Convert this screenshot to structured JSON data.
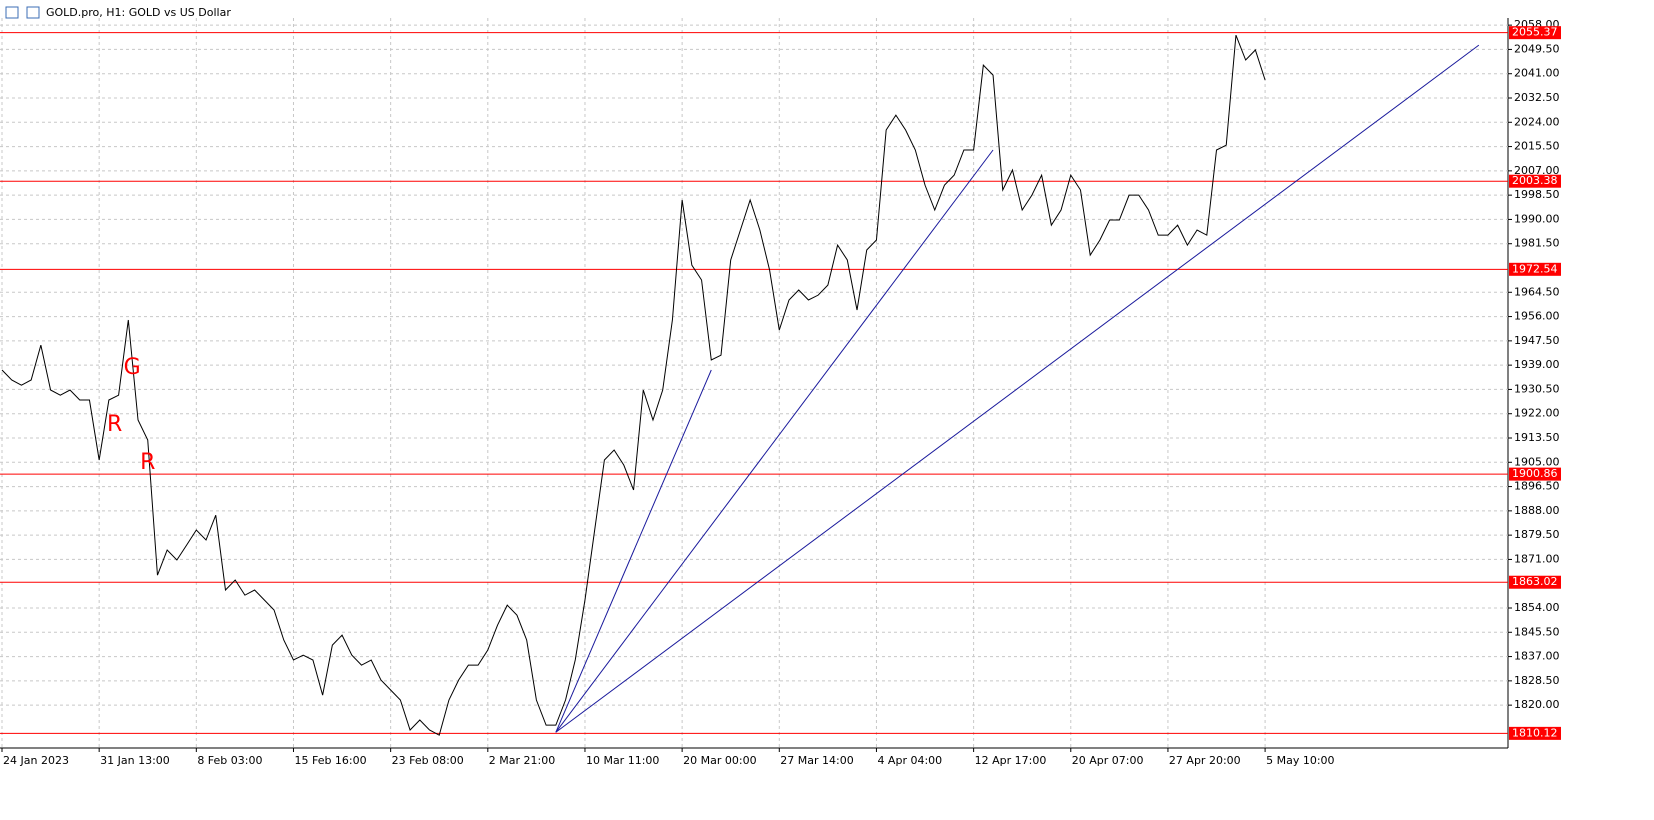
{
  "chart_data": {
    "type": "line",
    "title": "GOLD.pro, H1:  GOLD vs US Dollar",
    "categories": [
      "24 Jan 2023",
      null,
      null,
      null,
      null,
      null,
      null,
      null,
      null,
      null,
      "31 Jan 13:00",
      null,
      null,
      null,
      null,
      null,
      null,
      null,
      null,
      null,
      "8 Feb 03:00",
      null,
      null,
      null,
      null,
      null,
      null,
      null,
      null,
      null,
      "15 Feb 16:00",
      null,
      null,
      null,
      null,
      null,
      null,
      null,
      null,
      null,
      "23 Feb 08:00",
      null,
      null,
      null,
      null,
      null,
      null,
      null,
      null,
      null,
      "2 Mar 21:00",
      null,
      null,
      null,
      null,
      null,
      null,
      null,
      null,
      null,
      "10 Mar 11:00",
      null,
      null,
      null,
      null,
      null,
      null,
      null,
      null,
      null,
      "20 Mar 00:00",
      null,
      null,
      null,
      null,
      null,
      null,
      null,
      null,
      null,
      "27 Mar 14:00",
      null,
      null,
      null,
      null,
      null,
      null,
      null,
      null,
      null,
      "4 Apr 04:00",
      null,
      null,
      null,
      null,
      null,
      null,
      null,
      null,
      null,
      "12 Apr 17:00",
      null,
      null,
      null,
      null,
      null,
      null,
      null,
      null,
      null,
      "20 Apr 07:00",
      null,
      null,
      null,
      null,
      null,
      null,
      null,
      null,
      null,
      "27 Apr 20:00",
      null,
      null,
      null,
      null,
      null,
      null,
      null,
      null,
      null,
      "5 May 10:00",
      null,
      null,
      null,
      null,
      null,
      null,
      null,
      null,
      null,
      null,
      null,
      null,
      null,
      null,
      null,
      null,
      null,
      null,
      null,
      null,
      null,
      null,
      null,
      null
    ],
    "series": [
      {
        "color": "#000000",
        "values": [
          1937.3,
          1933.8,
          1932.0,
          1933.8,
          1946.0,
          1930.3,
          1928.5,
          1930.3,
          1926.8,
          1926.8,
          1905.8,
          1926.8,
          1928.5,
          1954.8,
          1919.8,
          1912.8,
          1865.5,
          1874.3,
          1870.8,
          1876.0,
          1881.3,
          1877.8,
          1886.5,
          1860.3,
          1863.8,
          1858.5,
          1860.3,
          1856.8,
          1853.3,
          1842.8,
          1835.8,
          1837.5,
          1835.8,
          1823.5,
          1841.0,
          1844.5,
          1837.5,
          1834.0,
          1835.8,
          1828.8,
          1825.3,
          1821.8,
          1811.3,
          1814.8,
          1811.3,
          1809.5,
          1821.8,
          1828.8,
          1834.0,
          1834.0,
          1839.3,
          1848.0,
          1855.0,
          1851.5,
          1842.8,
          1821.8,
          1813.0,
          1813.0,
          1821.8,
          1835.8,
          1856.8,
          1881.3,
          1905.8,
          1909.3,
          1904.0,
          1895.3,
          1930.3,
          1919.8,
          1930.3,
          1954.8,
          1996.8,
          1974.0,
          1968.8,
          1940.8,
          1942.5,
          1975.8,
          1986.3,
          1996.8,
          1986.3,
          1972.3,
          1951.3,
          1961.8,
          1965.3,
          1961.8,
          1963.5,
          1967.0,
          1981.0,
          1975.8,
          1958.3,
          1979.3,
          1982.8,
          2021.3,
          2026.5,
          2021.3,
          2014.3,
          2002.0,
          1993.3,
          2002.0,
          2005.5,
          2014.3,
          2014.3,
          2044.0,
          2040.5,
          2000.3,
          2007.3,
          1993.3,
          1998.5,
          2005.5,
          1988.0,
          1993.3,
          2005.5,
          2000.3,
          1977.5,
          1982.8,
          1989.8,
          1989.8,
          1998.5,
          1998.5,
          1993.3,
          1984.5,
          1984.5,
          1988.0,
          1981.0,
          1986.3,
          1984.5,
          2014.3,
          2016.0,
          2054.5,
          2045.8,
          2049.3,
          2038.8,
          null,
          null,
          null,
          null,
          null,
          null,
          null,
          null,
          null,
          null,
          null,
          null,
          null,
          null,
          null,
          null,
          null,
          null,
          null,
          null,
          null,
          null,
          null,
          null
        ]
      }
    ],
    "ylim": [
      1805,
      2060.5
    ],
    "yticks": [
      {
        "value": 2058,
        "label": "2058.00"
      },
      {
        "value": 2049.5,
        "label": "2049.50"
      },
      {
        "value": 2041,
        "label": "2041.00"
      },
      {
        "value": 2032.5,
        "label": "2032.50"
      },
      {
        "value": 2024,
        "label": "2024.00"
      },
      {
        "value": 2015.5,
        "label": "2015.50"
      },
      {
        "value": 2007,
        "label": "2007.00"
      },
      {
        "value": 1998.5,
        "label": "1998.50"
      },
      {
        "value": 1990,
        "label": "1990.00"
      },
      {
        "value": 1981.5,
        "label": "1981.50"
      },
      {
        "value": 1964.5,
        "label": "1964.50"
      },
      {
        "value": 1956,
        "label": "1956.00"
      },
      {
        "value": 1947.5,
        "label": "1947.50"
      },
      {
        "value": 1939,
        "label": "1939.00"
      },
      {
        "value": 1930.5,
        "label": "1930.50"
      },
      {
        "value": 1922,
        "label": "1922.00"
      },
      {
        "value": 1913.5,
        "label": "1913.50"
      },
      {
        "value": 1905,
        "label": "1905.00"
      },
      {
        "value": 1896.5,
        "label": "1896.50"
      },
      {
        "value": 1888,
        "label": "1888.00"
      },
      {
        "value": 1879.5,
        "label": "1879.50"
      },
      {
        "value": 1871,
        "label": "1871.00"
      },
      {
        "value": 1854,
        "label": "1854.00"
      },
      {
        "value": 1845.5,
        "label": "1845.50"
      },
      {
        "value": 1837,
        "label": "1837.00"
      },
      {
        "value": 1828.5,
        "label": "1828.50"
      },
      {
        "value": 1820,
        "label": "1820.00"
      }
    ],
    "grid": true,
    "levels": [
      {
        "value": 2055.37,
        "label": "2055.37"
      },
      {
        "value": 2003.38,
        "label": "2003.38"
      },
      {
        "value": 1972.54,
        "label": "1972.54"
      },
      {
        "value": 1900.86,
        "label": "1900.86"
      },
      {
        "value": 1863.02,
        "label": "1863.02"
      },
      {
        "value": 1810.12,
        "label": "1810.12"
      }
    ],
    "level_color": "#ff0000",
    "trendlines": [
      {
        "x": [
          57,
          73
        ],
        "y": [
          1810.5,
          1937.3
        ]
      },
      {
        "x": [
          57,
          102
        ],
        "y": [
          1810.5,
          2014.3
        ]
      },
      {
        "x": [
          57,
          152
        ],
        "y": [
          1810.5,
          2051
        ]
      }
    ],
    "trend_color": "#1a1a9c",
    "annotations": [
      {
        "text": "G",
        "x": 13.4,
        "y": 1938
      },
      {
        "text": "R",
        "x": 11.6,
        "y": 1918
      },
      {
        "text": "R",
        "x": 15,
        "y": 1904.7
      }
    ],
    "annotation_color": "#ff0000"
  }
}
